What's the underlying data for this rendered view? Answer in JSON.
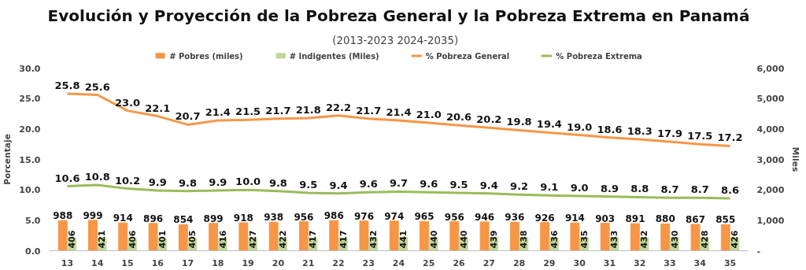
{
  "chart_data": {
    "type": "bar",
    "title": "Evolución y Proyección de la Pobreza General y la Pobreza Extrema en Panamá",
    "subtitle": "(2013-2023   2024-2035)",
    "ylabel": "Porcentaje",
    "y2label": "Miles",
    "categories": [
      "13",
      "14",
      "15",
      "16",
      "17",
      "18",
      "19",
      "20",
      "21",
      "22",
      "23",
      "24",
      "25",
      "26",
      "27",
      "28",
      "29",
      "30",
      "31",
      "32",
      "33",
      "34",
      "35"
    ],
    "series": [
      {
        "name": "# Pobres (miles)",
        "axis": "y2",
        "color": "#f79646",
        "values": [
          988,
          999,
          914,
          896,
          854,
          899,
          918,
          938,
          956,
          986,
          976,
          974,
          965,
          956,
          946,
          936,
          926,
          914,
          903,
          891,
          880,
          867,
          855
        ],
        "value_labels": [
          "988",
          "999",
          "914",
          "896",
          "854",
          "899",
          "918",
          "938",
          "956",
          "986",
          "976",
          "974",
          "965",
          "956",
          "946",
          "936",
          "926",
          "914",
          "903",
          "891",
          "880",
          "867",
          "855"
        ]
      },
      {
        "name": "# Indigentes (Miles)",
        "axis": "y2",
        "color": "#c3d69b",
        "values": [
          406,
          421,
          406,
          401,
          405,
          416,
          427,
          422,
          417,
          417,
          432,
          441,
          440,
          440,
          439,
          438,
          436,
          435,
          433,
          432,
          430,
          428,
          426
        ],
        "value_labels": [
          "406",
          "421",
          "406",
          "401",
          "405",
          "416",
          "427",
          "422",
          "417",
          "417",
          "432",
          "441",
          "440",
          "440",
          "439",
          "438",
          "436",
          "435",
          "433",
          "432",
          "430",
          "428",
          "426"
        ]
      },
      {
        "name": "% Pobreza General",
        "type": "line",
        "color": "#f79646",
        "values": [
          25.8,
          25.6,
          23.0,
          22.1,
          20.7,
          21.4,
          21.5,
          21.7,
          21.8,
          22.2,
          21.7,
          21.4,
          21.0,
          20.6,
          20.2,
          19.8,
          19.4,
          19.0,
          18.6,
          18.3,
          17.9,
          17.5,
          17.2
        ],
        "value_labels": [
          "25.8",
          "25.6",
          "23.0",
          "22.1",
          "20.7",
          "21.4",
          "21.5",
          "21.7",
          "21.8",
          "22.2",
          "21.7",
          "21.4",
          "21.0",
          "20.6",
          "20.2",
          "19.8",
          "19.4",
          "19.0",
          "18.6",
          "18.3",
          "17.9",
          "17.5",
          "17.2"
        ]
      },
      {
        "name": "% Pobreza Extrema",
        "type": "line",
        "color": "#9bbb59",
        "values": [
          10.6,
          10.8,
          10.2,
          9.9,
          9.8,
          9.9,
          10.0,
          9.8,
          9.5,
          9.4,
          9.6,
          9.7,
          9.6,
          9.5,
          9.4,
          9.2,
          9.1,
          9.0,
          8.9,
          8.8,
          8.7,
          8.7,
          8.6
        ],
        "value_labels": [
          "10.6",
          "10.8",
          "10.2",
          "9.9",
          "9.8",
          "9.9",
          "10.0",
          "9.8",
          "9.5",
          "9.4",
          "9.6",
          "9.7",
          "9.6",
          "9.5",
          "9.4",
          "9.2",
          "9.1",
          "9.0",
          "8.9",
          "8.8",
          "8.7",
          "8.7",
          "8.6"
        ]
      }
    ],
    "ylim": [
      0,
      30
    ],
    "yticks": [
      {
        "value": 0,
        "label": "0.0"
      },
      {
        "value": 5,
        "label": "5.0"
      },
      {
        "value": 10,
        "label": "10.0"
      },
      {
        "value": 15,
        "label": "15.0"
      },
      {
        "value": 20,
        "label": "20.0"
      },
      {
        "value": 25,
        "label": "25.0"
      },
      {
        "value": 30,
        "label": "30.0"
      }
    ],
    "y2lim": [
      0,
      6000
    ],
    "y2ticks": [
      {
        "value": 0,
        "label": "-"
      },
      {
        "value": 1000,
        "label": "1,000"
      },
      {
        "value": 2000,
        "label": "2,000"
      },
      {
        "value": 3000,
        "label": "3,000"
      },
      {
        "value": 4000,
        "label": "4,000"
      },
      {
        "value": 5000,
        "label": "5,000"
      },
      {
        "value": 6000,
        "label": "6,000"
      }
    ],
    "legend": "top",
    "grid": false,
    "marker": "none",
    "line_style": "solid"
  }
}
